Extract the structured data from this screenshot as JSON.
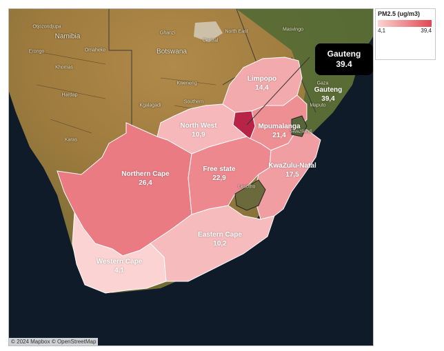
{
  "legend": {
    "title": "PM2.5 (ug/m3)",
    "min_label": "4,1",
    "max_label": "39,4",
    "min_color": "#fbd3d2",
    "max_color": "#e04853"
  },
  "tooltip": {
    "name": "Gauteng",
    "value": "39.4"
  },
  "credit": "© 2024 Mapbox © OpenStreetMap",
  "provinces": [
    {
      "name": "Limpopo",
      "value": "14,4",
      "pm25": 14.4
    },
    {
      "name": "Gauteng",
      "value": "39,4",
      "pm25": 39.4
    },
    {
      "name": "North West",
      "value": "10,9",
      "pm25": 10.9
    },
    {
      "name": "Mpumalanga",
      "value": "21,4",
      "pm25": 21.4
    },
    {
      "name": "Northern Cape",
      "value": "26,4",
      "pm25": 26.4
    },
    {
      "name": "Free state",
      "value": "22,9",
      "pm25": 22.9
    },
    {
      "name": "KwaZulu-Natal",
      "value": "17,5",
      "pm25": 17.5
    },
    {
      "name": "Eastern Cape",
      "value": "10,2",
      "pm25": 10.2
    },
    {
      "name": "Western Cape",
      "value": "4,1",
      "pm25": 4.1
    }
  ],
  "basemap_labels": {
    "countries": [
      "Namibia",
      "Botswana",
      "Lesotho",
      "Swaziland"
    ],
    "places": [
      "Otjozondjupa",
      "Erongo",
      "Omaheke",
      "Khomas",
      "Hardap",
      "Karas",
      "Ghanzi",
      "Central",
      "Kweneng",
      "Southern",
      "Kgalagadi",
      "North East",
      "Masvingo",
      "Gaza",
      "Maputo"
    ]
  }
}
